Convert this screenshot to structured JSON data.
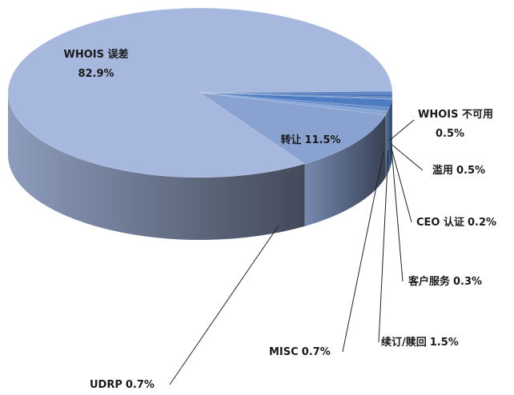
{
  "chart_data": {
    "type": "pie3d",
    "categories": [
      "WHOIS 误差",
      "WHOIS 不可用",
      "滥用",
      "CEO 认证",
      "客户服务",
      "续订/赎回",
      "MISC",
      "UDRP",
      "转让"
    ],
    "values": [
      82.9,
      0.5,
      0.5,
      0.2,
      0.3,
      1.5,
      0.7,
      0.7,
      11.5
    ],
    "value_labels": [
      "82.9%",
      "0.5%",
      "0.5%",
      "0.2%",
      "0.3%",
      "1.5%",
      "0.7%",
      "0.7%",
      "11.5%"
    ],
    "colors": [
      "#a6b8de",
      "#5b84c4",
      "#4a74b8",
      "#3e66a8",
      "#6f95d0",
      "#4d7cc2",
      "#6a8fcc",
      "#87a6d8",
      "#8aa2cf"
    ]
  }
}
